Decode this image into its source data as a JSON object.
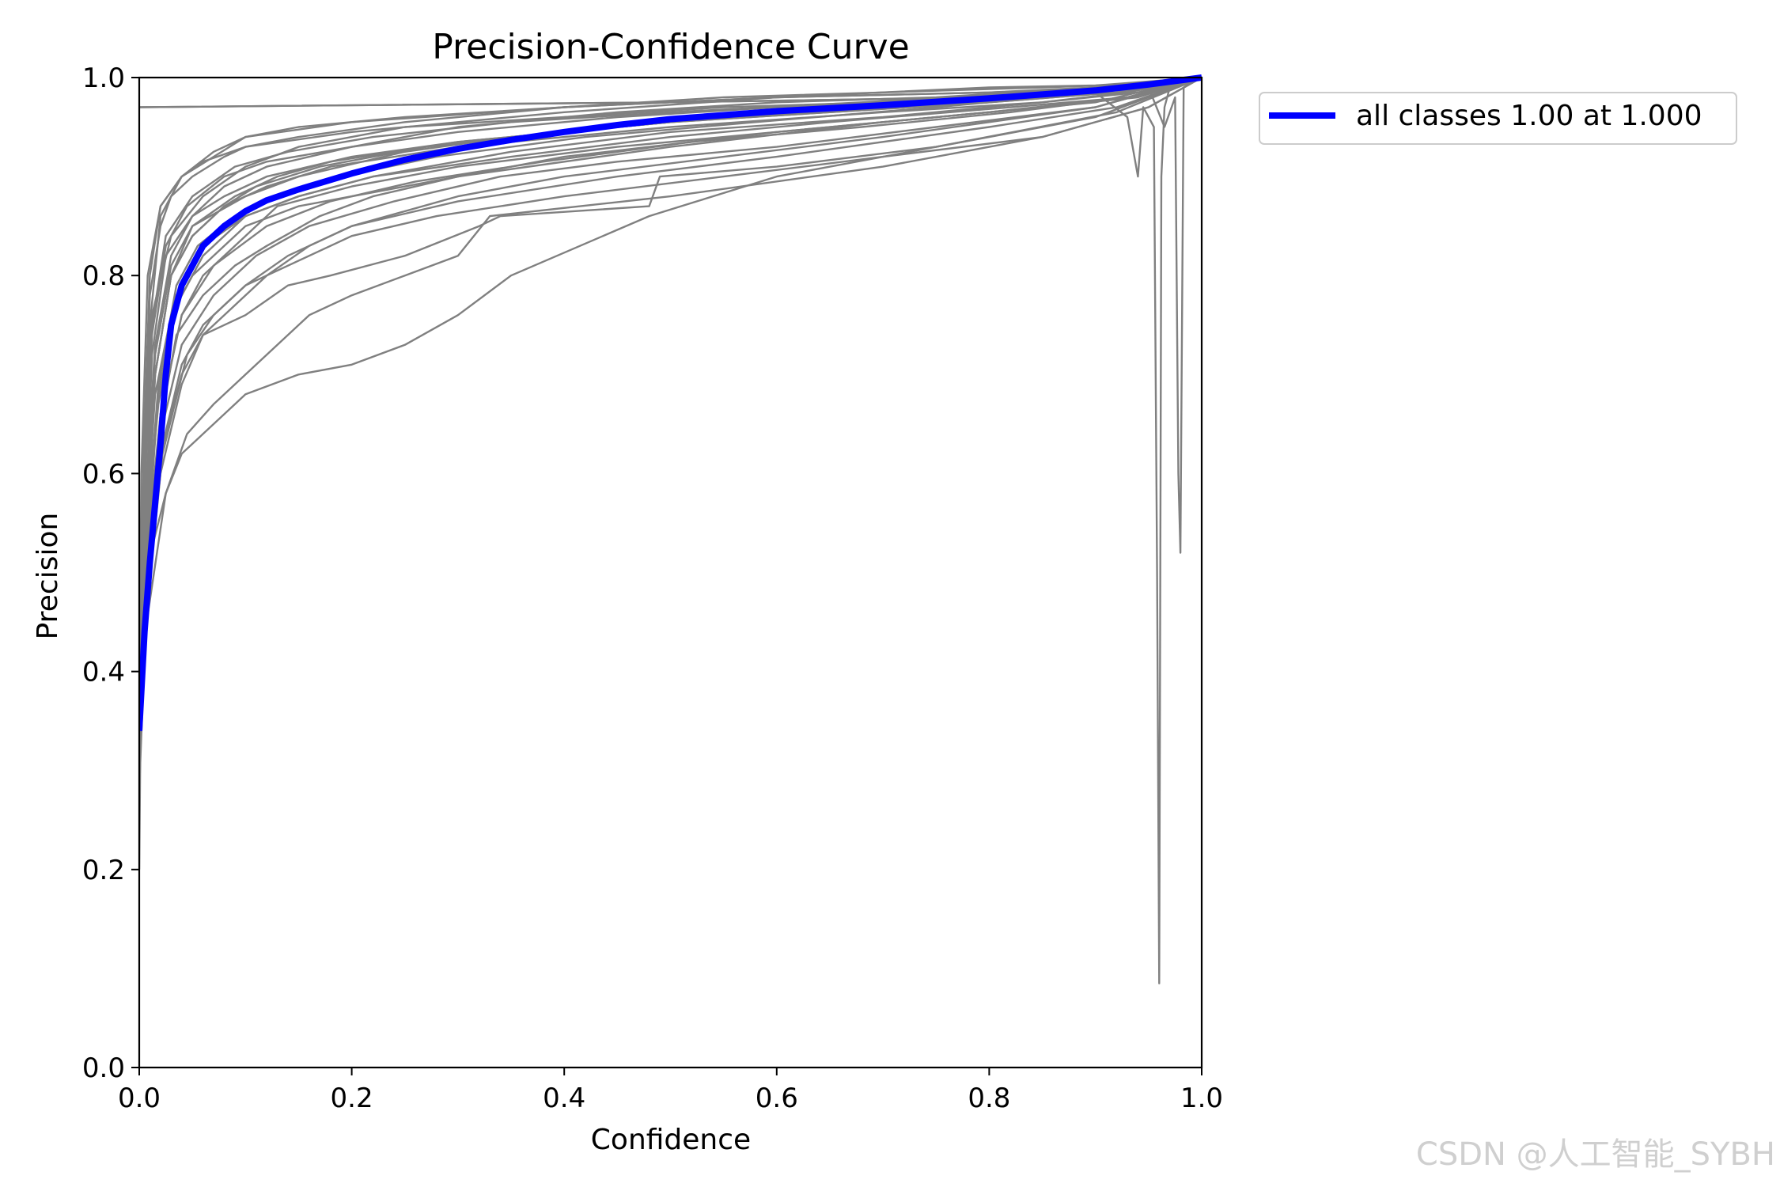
{
  "chart_data": {
    "type": "line",
    "title": "Precision-Confidence Curve",
    "xlabel": "Confidence",
    "ylabel": "Precision",
    "xlim": [
      0,
      1
    ],
    "ylim": [
      0,
      1
    ],
    "xticks": [
      "0.0",
      "0.2",
      "0.4",
      "0.6",
      "0.8",
      "1.0"
    ],
    "yticks": [
      "0.0",
      "0.2",
      "0.4",
      "0.6",
      "0.8",
      "1.0"
    ],
    "grid": false,
    "legend_position": "outside-top-right",
    "legend": [
      "all classes 1.00 at 1.000"
    ],
    "colors": {
      "per_class": "#808080",
      "all_classes": "#0000ff"
    },
    "series": [
      {
        "name": "all classes 1.00 at 1.000",
        "x": [
          0.0,
          0.005,
          0.01,
          0.015,
          0.02,
          0.025,
          0.03,
          0.04,
          0.05,
          0.06,
          0.08,
          0.1,
          0.12,
          0.15,
          0.2,
          0.25,
          0.3,
          0.35,
          0.4,
          0.45,
          0.5,
          0.6,
          0.7,
          0.8,
          0.9,
          0.95,
          1.0
        ],
        "y": [
          0.34,
          0.44,
          0.51,
          0.57,
          0.63,
          0.7,
          0.75,
          0.79,
          0.81,
          0.83,
          0.85,
          0.865,
          0.876,
          0.887,
          0.903,
          0.917,
          0.928,
          0.937,
          0.945,
          0.952,
          0.958,
          0.966,
          0.972,
          0.979,
          0.987,
          0.993,
          1.0
        ]
      },
      {
        "x": [
          0.0,
          0.002,
          0.008,
          0.02,
          0.04,
          0.06,
          0.1,
          0.2,
          0.4,
          0.6,
          0.8,
          0.9,
          0.95,
          1.0
        ],
        "y": [
          0.34,
          0.6,
          0.8,
          0.87,
          0.9,
          0.915,
          0.93,
          0.945,
          0.965,
          0.98,
          0.99,
          0.992,
          0.996,
          1.0
        ]
      },
      {
        "x": [
          0.0,
          0.003,
          0.01,
          0.02,
          0.04,
          0.07,
          0.1,
          0.2,
          0.4,
          0.6,
          0.8,
          0.9,
          0.95,
          1.0
        ],
        "y": [
          0.2,
          0.55,
          0.75,
          0.86,
          0.9,
          0.92,
          0.94,
          0.955,
          0.97,
          0.98,
          0.985,
          0.99,
          0.995,
          1.0
        ]
      },
      {
        "x": [
          0.0,
          0.004,
          0.012,
          0.025,
          0.05,
          0.08,
          0.12,
          0.2,
          0.3,
          0.5,
          0.7,
          0.85,
          0.94,
          1.0
        ],
        "y": [
          0.3,
          0.5,
          0.72,
          0.82,
          0.86,
          0.88,
          0.9,
          0.92,
          0.935,
          0.955,
          0.97,
          0.98,
          0.99,
          1.0
        ]
      },
      {
        "x": [
          0.0,
          0.004,
          0.015,
          0.03,
          0.05,
          0.08,
          0.12,
          0.18,
          0.3,
          0.5,
          0.7,
          0.85,
          0.94,
          1.0
        ],
        "y": [
          0.32,
          0.45,
          0.7,
          0.8,
          0.84,
          0.87,
          0.89,
          0.91,
          0.93,
          0.95,
          0.965,
          0.975,
          0.985,
          1.0
        ]
      },
      {
        "x": [
          0.0,
          0.005,
          0.015,
          0.03,
          0.05,
          0.08,
          0.1,
          0.15,
          0.25,
          0.4,
          0.6,
          0.8,
          0.93,
          1.0
        ],
        "y": [
          0.36,
          0.52,
          0.68,
          0.76,
          0.8,
          0.83,
          0.85,
          0.87,
          0.89,
          0.92,
          0.945,
          0.965,
          0.98,
          1.0
        ]
      },
      {
        "x": [
          0.0,
          0.005,
          0.02,
          0.035,
          0.06,
          0.09,
          0.12,
          0.17,
          0.22,
          0.3,
          0.5,
          0.7,
          0.9,
          1.0
        ],
        "y": [
          0.3,
          0.48,
          0.65,
          0.74,
          0.78,
          0.81,
          0.83,
          0.86,
          0.88,
          0.9,
          0.93,
          0.955,
          0.975,
          1.0
        ]
      },
      {
        "x": [
          0.0,
          0.006,
          0.02,
          0.04,
          0.06,
          0.09,
          0.12,
          0.16,
          0.2,
          0.3,
          0.45,
          0.6,
          0.8,
          0.92,
          1.0
        ],
        "y": [
          0.28,
          0.45,
          0.6,
          0.69,
          0.74,
          0.77,
          0.8,
          0.83,
          0.85,
          0.875,
          0.9,
          0.92,
          0.95,
          0.97,
          1.0
        ]
      },
      {
        "x": [
          0.0,
          0.006,
          0.025,
          0.04,
          0.07,
          0.1,
          0.15,
          0.2,
          0.25,
          0.3,
          0.35,
          0.48,
          0.6,
          0.75,
          0.92,
          1.0
        ],
        "y": [
          0.33,
          0.5,
          0.58,
          0.62,
          0.65,
          0.68,
          0.7,
          0.71,
          0.73,
          0.76,
          0.8,
          0.86,
          0.9,
          0.93,
          0.965,
          1.0
        ]
      },
      {
        "x": [
          0.0,
          0.005,
          0.02,
          0.04,
          0.06,
          0.1,
          0.14,
          0.18,
          0.25,
          0.32,
          0.34,
          0.48,
          0.49,
          0.6,
          0.75,
          0.9,
          1.0
        ],
        "y": [
          0.3,
          0.5,
          0.62,
          0.7,
          0.74,
          0.76,
          0.79,
          0.8,
          0.82,
          0.85,
          0.86,
          0.87,
          0.9,
          0.91,
          0.93,
          0.96,
          1.0
        ]
      },
      {
        "x": [
          0.0,
          0.004,
          0.01,
          0.02,
          0.03,
          0.05,
          0.08,
          0.1,
          0.15,
          0.25,
          0.4,
          0.55,
          0.7,
          0.85,
          0.93,
          1.0
        ],
        "y": [
          0.35,
          0.6,
          0.78,
          0.85,
          0.88,
          0.9,
          0.92,
          0.93,
          0.94,
          0.955,
          0.97,
          0.98,
          0.985,
          0.99,
          0.993,
          1.0
        ]
      },
      {
        "x": [
          0.0,
          0.004,
          0.012,
          0.03,
          0.06,
          0.1,
          0.15,
          0.25,
          0.4,
          0.55,
          0.7,
          0.85,
          0.93,
          1.0
        ],
        "y": [
          0.33,
          0.58,
          0.76,
          0.84,
          0.88,
          0.91,
          0.93,
          0.95,
          0.96,
          0.97,
          0.975,
          0.985,
          0.99,
          1.0
        ]
      },
      {
        "x": [
          0.0,
          0.005,
          0.015,
          0.03,
          0.05,
          0.1,
          0.15,
          0.25,
          0.35,
          0.5,
          0.65,
          0.8,
          0.92,
          1.0
        ],
        "y": [
          0.3,
          0.55,
          0.7,
          0.8,
          0.85,
          0.88,
          0.9,
          0.925,
          0.94,
          0.955,
          0.965,
          0.975,
          0.985,
          1.0
        ]
      },
      {
        "x": [
          0.0,
          0.005,
          0.018,
          0.035,
          0.06,
          0.1,
          0.15,
          0.22,
          0.35,
          0.5,
          0.7,
          0.85,
          0.93,
          1.0
        ],
        "y": [
          0.31,
          0.52,
          0.67,
          0.77,
          0.82,
          0.86,
          0.88,
          0.9,
          0.925,
          0.945,
          0.96,
          0.975,
          0.985,
          1.0
        ]
      },
      {
        "x": [
          0.0,
          0.006,
          0.02,
          0.04,
          0.07,
          0.11,
          0.16,
          0.24,
          0.34,
          0.45,
          0.6,
          0.75,
          0.9,
          1.0
        ],
        "y": [
          0.29,
          0.47,
          0.64,
          0.73,
          0.78,
          0.82,
          0.85,
          0.875,
          0.9,
          0.915,
          0.93,
          0.95,
          0.97,
          1.0
        ]
      },
      {
        "x": [
          0.0,
          0.005,
          0.015,
          0.03,
          0.05,
          0.08,
          0.12,
          0.2,
          0.3,
          0.45,
          0.6,
          0.75,
          0.9,
          1.0
        ],
        "y": [
          0.34,
          0.56,
          0.73,
          0.82,
          0.86,
          0.89,
          0.91,
          0.93,
          0.95,
          0.965,
          0.975,
          0.98,
          0.99,
          1.0
        ]
      },
      {
        "x": [
          0.0,
          0.005,
          0.02,
          0.04,
          0.06,
          0.1,
          0.13,
          0.2,
          0.3,
          0.45,
          0.6,
          0.8,
          0.94,
          1.0
        ],
        "y": [
          0.32,
          0.5,
          0.66,
          0.76,
          0.8,
          0.84,
          0.87,
          0.89,
          0.91,
          0.93,
          0.945,
          0.965,
          0.98,
          1.0
        ]
      },
      {
        "x": [
          0.0,
          0.006,
          0.022,
          0.045,
          0.07,
          0.1,
          0.14,
          0.2,
          0.28,
          0.4,
          0.55,
          0.7,
          0.85,
          0.95,
          1.0
        ],
        "y": [
          0.3,
          0.46,
          0.62,
          0.72,
          0.76,
          0.79,
          0.81,
          0.84,
          0.86,
          0.88,
          0.9,
          0.92,
          0.94,
          0.97,
          1.0
        ]
      },
      {
        "x": [
          0.0,
          0.004,
          0.01,
          0.02,
          0.04,
          0.07,
          0.1,
          0.15,
          0.25,
          0.4,
          0.6,
          0.8,
          0.93,
          1.0
        ],
        "y": [
          0.36,
          0.62,
          0.8,
          0.87,
          0.9,
          0.925,
          0.94,
          0.95,
          0.96,
          0.97,
          0.98,
          0.985,
          0.99,
          1.0
        ]
      },
      {
        "x": [
          0.0,
          0.005,
          0.015,
          0.03,
          0.05,
          0.09,
          0.13,
          0.18,
          0.3,
          0.5,
          0.65,
          0.8,
          0.92,
          1.0
        ],
        "y": [
          0.33,
          0.54,
          0.72,
          0.81,
          0.85,
          0.88,
          0.9,
          0.915,
          0.935,
          0.955,
          0.965,
          0.975,
          0.985,
          1.0
        ]
      },
      {
        "x": [
          0.0,
          0.006,
          0.018,
          0.035,
          0.06,
          0.1,
          0.15,
          0.22,
          0.35,
          0.5,
          0.65,
          0.82,
          0.93,
          1.0
        ],
        "y": [
          0.3,
          0.5,
          0.68,
          0.78,
          0.83,
          0.86,
          0.88,
          0.9,
          0.92,
          0.94,
          0.955,
          0.97,
          0.98,
          1.0
        ]
      },
      {
        "x": [
          0.0,
          0.005,
          0.012,
          0.025,
          0.045,
          0.08,
          0.12,
          0.2,
          0.3,
          0.45,
          0.6,
          0.8,
          0.92,
          1.0
        ],
        "y": [
          0.35,
          0.58,
          0.74,
          0.83,
          0.87,
          0.9,
          0.915,
          0.93,
          0.945,
          0.96,
          0.97,
          0.98,
          0.99,
          1.0
        ]
      },
      {
        "x": [
          0.0,
          0.006,
          0.02,
          0.04,
          0.07,
          0.12,
          0.18,
          0.26,
          0.38,
          0.52,
          0.68,
          0.82,
          0.93,
          1.0
        ],
        "y": [
          0.31,
          0.49,
          0.66,
          0.76,
          0.81,
          0.85,
          0.875,
          0.895,
          0.915,
          0.935,
          0.95,
          0.965,
          0.98,
          1.0
        ]
      },
      {
        "x": [
          0.0,
          0.005,
          0.02,
          0.04,
          0.06,
          0.1,
          0.14,
          0.2,
          0.3,
          0.4,
          0.55,
          0.7,
          0.9,
          1.0
        ],
        "y": [
          0.32,
          0.48,
          0.62,
          0.71,
          0.75,
          0.79,
          0.82,
          0.85,
          0.88,
          0.9,
          0.92,
          0.94,
          0.97,
          1.0
        ]
      },
      {
        "x": [
          0.0,
          0.004,
          0.012,
          0.025,
          0.05,
          0.09,
          0.14,
          0.22,
          0.35,
          0.5,
          0.68,
          0.83,
          0.93,
          1.0
        ],
        "y": [
          0.34,
          0.57,
          0.75,
          0.84,
          0.88,
          0.91,
          0.925,
          0.94,
          0.955,
          0.965,
          0.975,
          0.985,
          0.99,
          1.0
        ]
      },
      {
        "x": [
          0.0,
          0.007,
          0.025,
          0.045,
          0.07,
          0.1,
          0.13,
          0.16,
          0.2,
          0.25,
          0.3,
          0.33,
          0.5,
          0.7,
          0.85,
          0.95,
          1.0
        ],
        "y": [
          0.3,
          0.45,
          0.58,
          0.64,
          0.67,
          0.7,
          0.73,
          0.76,
          0.78,
          0.8,
          0.82,
          0.86,
          0.88,
          0.91,
          0.94,
          0.97,
          1.0
        ]
      },
      {
        "x": [
          0.0,
          0.005,
          0.015,
          0.03,
          0.05,
          0.08,
          0.11,
          0.17,
          0.27,
          0.4,
          0.55,
          0.72,
          0.88,
          1.0
        ],
        "y": [
          0.33,
          0.53,
          0.7,
          0.8,
          0.84,
          0.87,
          0.89,
          0.91,
          0.93,
          0.945,
          0.96,
          0.97,
          0.985,
          1.0
        ]
      },
      {
        "x": [
          0.0,
          0.005,
          0.018,
          0.035,
          0.055,
          0.09,
          0.13,
          0.19,
          0.28,
          0.42,
          0.58,
          0.75,
          0.9,
          1.0
        ],
        "y": [
          0.31,
          0.51,
          0.69,
          0.79,
          0.83,
          0.86,
          0.88,
          0.9,
          0.92,
          0.94,
          0.955,
          0.97,
          0.985,
          1.0
        ]
      },
      {
        "x": [
          0.0,
          0.5,
          0.8,
          0.9,
          0.93,
          0.935,
          0.94,
          0.945,
          0.955,
          0.958,
          0.96,
          0.962,
          0.965,
          0.97,
          1.0
        ],
        "y": [
          0.97,
          0.975,
          0.98,
          0.985,
          0.96,
          0.93,
          0.9,
          0.97,
          0.95,
          0.5,
          0.085,
          0.9,
          0.97,
          0.99,
          1.0
        ]
      },
      {
        "x": [
          0.0,
          0.5,
          0.8,
          0.9,
          0.95,
          0.965,
          0.975,
          0.978,
          0.98,
          0.983,
          0.99,
          1.0
        ],
        "y": [
          0.97,
          0.975,
          0.98,
          0.985,
          0.99,
          0.95,
          0.98,
          0.6,
          0.52,
          0.99,
          0.995,
          1.0
        ]
      }
    ]
  },
  "watermark": "CSDN @人工智能_SYBH"
}
